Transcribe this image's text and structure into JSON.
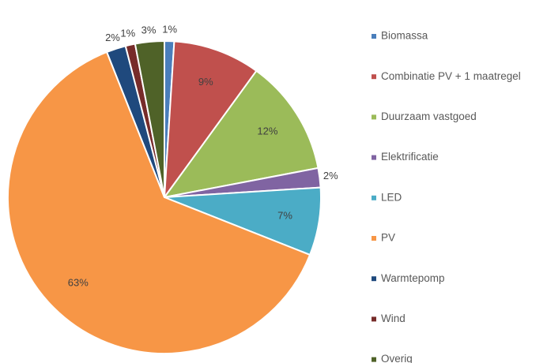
{
  "chart_data": {
    "type": "pie",
    "categories": [
      "Biomassa",
      "Combinatie PV + 1 maatregel",
      "Duurzaam vastgoed",
      "Elektrificatie",
      "LED",
      "PV",
      "Warmtepomp",
      "Wind",
      "Overig"
    ],
    "values": [
      1,
      9,
      12,
      2,
      7,
      63,
      2,
      1,
      3
    ],
    "value_labels": [
      "1%",
      "9%",
      "12%",
      "2%",
      "7%",
      "63%",
      "2%",
      "1%",
      "3%"
    ],
    "colors": [
      "#4a7ebb",
      "#c0504d",
      "#9bbb59",
      "#8064a2",
      "#4bacc6",
      "#f79646",
      "#1f497d",
      "#772c2a",
      "#4f6228"
    ],
    "legend": "right"
  }
}
